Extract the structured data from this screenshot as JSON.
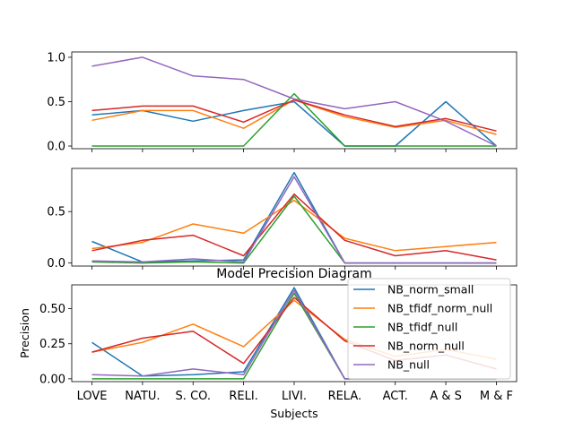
{
  "chart_data": [
    {
      "type": "line",
      "categories": [
        "LOVE",
        "NATU.",
        "S. CO.",
        "RELI.",
        "LIVI.",
        "RELA.",
        "ACT.",
        "A & S",
        "M & F"
      ],
      "ylim": [
        -0.03,
        1.06
      ],
      "yticks": [
        "0.0",
        "0.5",
        "1.0"
      ],
      "ytick_values": [
        0,
        0.5,
        1.0
      ],
      "series": [
        {
          "name": "NB_norm_small",
          "color": "#1f77b4",
          "values": [
            0.35,
            0.4,
            0.28,
            0.4,
            0.5,
            0.0,
            0.0,
            0.5,
            0.0
          ]
        },
        {
          "name": "NB_tfidf_norm_null",
          "color": "#ff7f0e",
          "values": [
            0.29,
            0.4,
            0.4,
            0.2,
            0.52,
            0.33,
            0.21,
            0.29,
            0.13
          ]
        },
        {
          "name": "NB_tfidf_null",
          "color": "#2ca02c",
          "values": [
            0.0,
            0.0,
            0.0,
            0.0,
            0.59,
            0.0,
            0.0,
            0.0,
            0.0
          ]
        },
        {
          "name": "NB_norm_null",
          "color": "#d62728",
          "values": [
            0.4,
            0.45,
            0.45,
            0.27,
            0.52,
            0.35,
            0.22,
            0.31,
            0.17
          ]
        },
        {
          "name": "NB_null",
          "color": "#9467bd",
          "values": [
            0.9,
            1.0,
            0.79,
            0.75,
            0.53,
            0.42,
            0.5,
            0.28,
            0.0
          ]
        }
      ]
    },
    {
      "type": "line",
      "categories": [
        "LOVE",
        "NATU.",
        "S. CO.",
        "RELI.",
        "LIVI.",
        "RELA.",
        "ACT.",
        "A & S",
        "M & F"
      ],
      "ylim": [
        -0.03,
        0.92
      ],
      "yticks": [
        "0.0",
        "0.5"
      ],
      "ytick_values": [
        0,
        0.5
      ],
      "series": [
        {
          "name": "NB_norm_small",
          "color": "#1f77b4",
          "values": [
            0.21,
            0.01,
            0.02,
            0.03,
            0.88,
            0.0,
            0.0,
            0.0,
            0.0
          ]
        },
        {
          "name": "NB_tfidf_norm_null",
          "color": "#ff7f0e",
          "values": [
            0.14,
            0.2,
            0.38,
            0.29,
            0.61,
            0.24,
            0.12,
            0.16,
            0.2
          ]
        },
        {
          "name": "NB_tfidf_null",
          "color": "#2ca02c",
          "values": [
            0.01,
            0.0,
            0.01,
            0.0,
            0.65,
            0.0,
            0.0,
            0.0,
            0.0
          ]
        },
        {
          "name": "NB_norm_null",
          "color": "#d62728",
          "values": [
            0.12,
            0.22,
            0.27,
            0.07,
            0.67,
            0.22,
            0.07,
            0.12,
            0.03
          ]
        },
        {
          "name": "NB_null",
          "color": "#9467bd",
          "values": [
            0.02,
            0.01,
            0.04,
            0.01,
            0.84,
            0.0,
            0.0,
            0.0,
            0.0
          ]
        }
      ]
    },
    {
      "type": "line",
      "title": "Model Precision Diagram",
      "xlabel": "Subjects",
      "ylabel": "Precision",
      "categories": [
        "LOVE",
        "NATU.",
        "S. CO.",
        "RELI.",
        "LIVI.",
        "RELA.",
        "ACT.",
        "A & S",
        "M & F"
      ],
      "ylim": [
        -0.02,
        0.67
      ],
      "yticks": [
        "0.00",
        "0.25",
        "0.50"
      ],
      "ytick_values": [
        0,
        0.25,
        0.5
      ],
      "legend": "upper right",
      "series": [
        {
          "name": "NB_norm_small",
          "color": "#1f77b4",
          "values": [
            0.26,
            0.02,
            0.03,
            0.05,
            0.65,
            0.0,
            0.0,
            0.0,
            0.0
          ]
        },
        {
          "name": "NB_tfidf_norm_null",
          "color": "#ff7f0e",
          "values": [
            0.19,
            0.26,
            0.39,
            0.23,
            0.56,
            0.28,
            0.16,
            0.21,
            0.14
          ]
        },
        {
          "name": "NB_tfidf_null",
          "color": "#2ca02c",
          "values": [
            0.0,
            0.0,
            0.0,
            0.0,
            0.61,
            0.0,
            0.0,
            0.0,
            0.0
          ]
        },
        {
          "name": "NB_norm_null",
          "color": "#d62728",
          "values": [
            0.19,
            0.29,
            0.34,
            0.11,
            0.58,
            0.27,
            0.13,
            0.17,
            0.07
          ]
        },
        {
          "name": "NB_null",
          "color": "#9467bd",
          "values": [
            0.03,
            0.02,
            0.07,
            0.03,
            0.63,
            0.0,
            0.0,
            0.0,
            0.0
          ]
        }
      ]
    }
  ]
}
